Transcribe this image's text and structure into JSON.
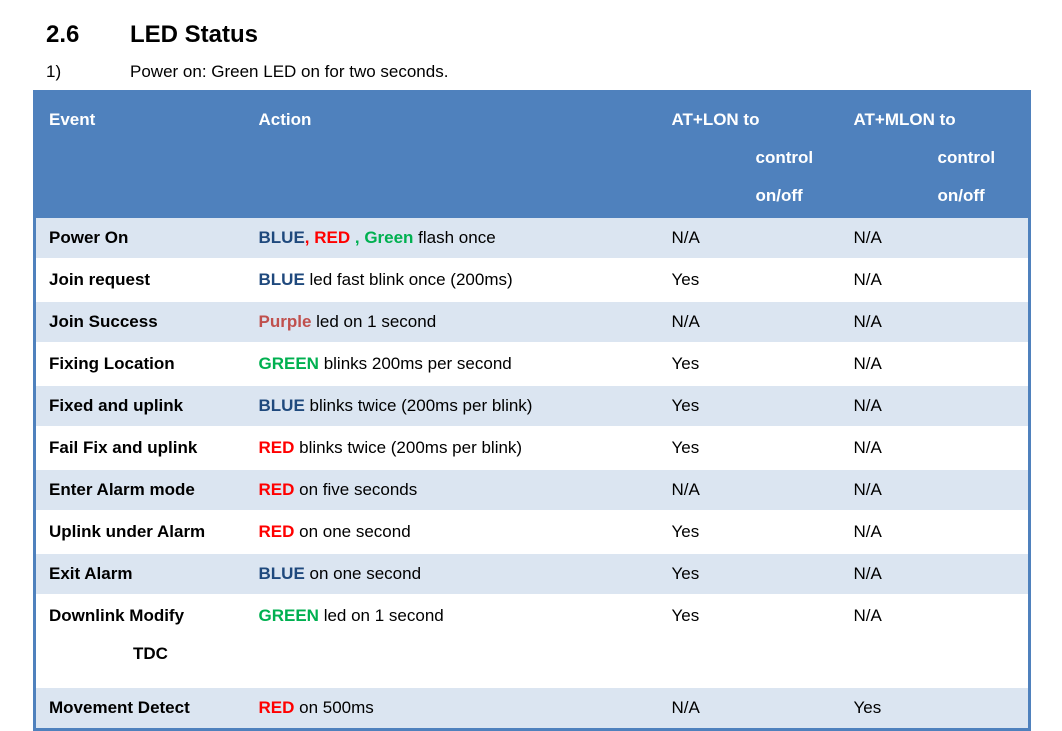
{
  "section": {
    "number": "2.6",
    "title": "LED Status"
  },
  "note": {
    "number": "1)",
    "text": "Power on: Green LED on for two seconds."
  },
  "table": {
    "headers": {
      "event": "Event",
      "action": "Action",
      "lon_line1": "AT+LON to",
      "lon_line2": "control",
      "lon_line3": "on/off",
      "mlon_line1": "AT+MLON to",
      "mlon_line2": "control",
      "mlon_line3": "on/off"
    },
    "rows": [
      {
        "event": "Power On",
        "action": {
          "c1": "BLUE",
          "s1": ", ",
          "c2": "RED",
          "s2": " , ",
          "c3": "Green",
          "rest": " flash once"
        },
        "lon": "N/A",
        "mlon": "N/A"
      },
      {
        "event": "Join request",
        "action": {
          "color": "BLUE",
          "rest": " led fast blink once (200ms)"
        },
        "lon": "Yes",
        "mlon": "N/A"
      },
      {
        "event": "Join Success",
        "action": {
          "color": "Purple",
          "rest": " led on 1 second"
        },
        "lon": "N/A",
        "mlon": "N/A"
      },
      {
        "event": "Fixing Location",
        "action": {
          "color": "GREEN",
          "rest": " blinks 200ms per second"
        },
        "lon": "Yes",
        "mlon": "N/A"
      },
      {
        "event": "Fixed and uplink",
        "action": {
          "color": "BLUE",
          "rest": " blinks twice (200ms per blink)"
        },
        "lon": "Yes",
        "mlon": "N/A"
      },
      {
        "event": "Fail Fix and uplink",
        "action": {
          "color": "RED",
          "rest": " blinks twice (200ms per blink)"
        },
        "lon": "Yes",
        "mlon": "N/A"
      },
      {
        "event": "Enter Alarm mode",
        "action": {
          "color": "RED",
          "rest": " on five seconds"
        },
        "lon": "N/A",
        "mlon": "N/A"
      },
      {
        "event": "Uplink under Alarm",
        "action": {
          "color": "RED",
          "rest": " on one second"
        },
        "lon": "Yes",
        "mlon": "N/A"
      },
      {
        "event": "Exit Alarm",
        "action": {
          "color": "BLUE",
          "rest": " on one second"
        },
        "lon": "Yes",
        "mlon": "N/A"
      },
      {
        "event_line1": "Downlink Modify",
        "event_line2": "TDC",
        "action": {
          "color": "GREEN",
          "rest": " led on 1 second"
        },
        "lon": "Yes",
        "mlon": "N/A"
      },
      {
        "event": "Movement Detect",
        "action": {
          "color": "RED",
          "rest": " on 500ms"
        },
        "lon": "N/A",
        "mlon": "Yes"
      }
    ]
  },
  "colors": {
    "header_bg": "#4f81bd",
    "band_bg": "#dbe5f1",
    "blue_text": "#1f497d",
    "red_text": "#ff0000",
    "green_text": "#00b050",
    "purple_text": "#c0504d"
  }
}
